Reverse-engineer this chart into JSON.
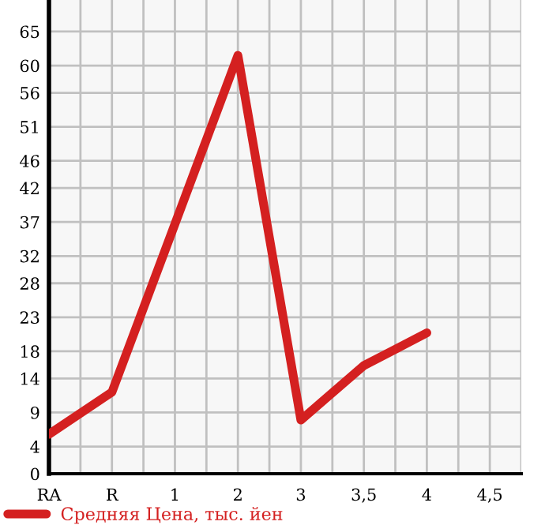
{
  "chart_data": {
    "type": "line",
    "categories": [
      "RA",
      "R",
      "1",
      "2",
      "3",
      "3,5",
      "4",
      "4,5"
    ],
    "series": [
      {
        "name": "Средняя Цена, тыс. йен",
        "color": "#d42020",
        "values": [
          5.8,
          12.0,
          36.7,
          61.5,
          7.9,
          15.9,
          20.7,
          null
        ]
      }
    ],
    "ylim": [
      0,
      69.64
    ],
    "yticks": [
      0,
      4,
      9,
      14,
      18,
      23,
      28,
      32,
      37,
      42,
      46,
      51,
      56,
      60,
      65
    ],
    "grid": true,
    "legend": "bottom",
    "marker": "none",
    "line_style": "solid"
  }
}
